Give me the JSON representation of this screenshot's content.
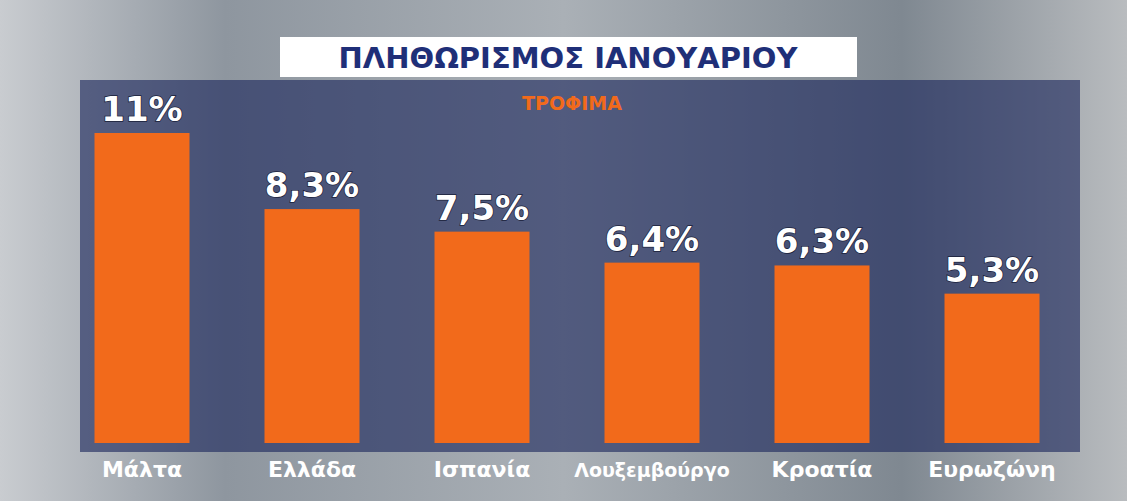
{
  "chart_data": {
    "type": "bar",
    "title": "ΠΛΗΘΩΡΙΣΜΟΣ ΙΑΝΟΥΑΡΙΟΥ",
    "subtitle": "ΤΡΟΦΙΜΑ",
    "categories": [
      "Μάλτα",
      "Ελλάδα",
      "Ισπανία",
      "Λουξεμβούργο",
      "Κροατία",
      "Ευρωζώνη"
    ],
    "values": [
      11,
      8.3,
      7.5,
      6.4,
      6.3,
      5.3
    ],
    "value_labels": [
      "11%",
      "8,3%",
      "7,5%",
      "6,4%",
      "6,3%",
      "5,3%"
    ],
    "color": "#f26a1b",
    "ylim": [
      0,
      11
    ],
    "data_labels": true,
    "tick_labels": "x",
    "grid": false
  }
}
